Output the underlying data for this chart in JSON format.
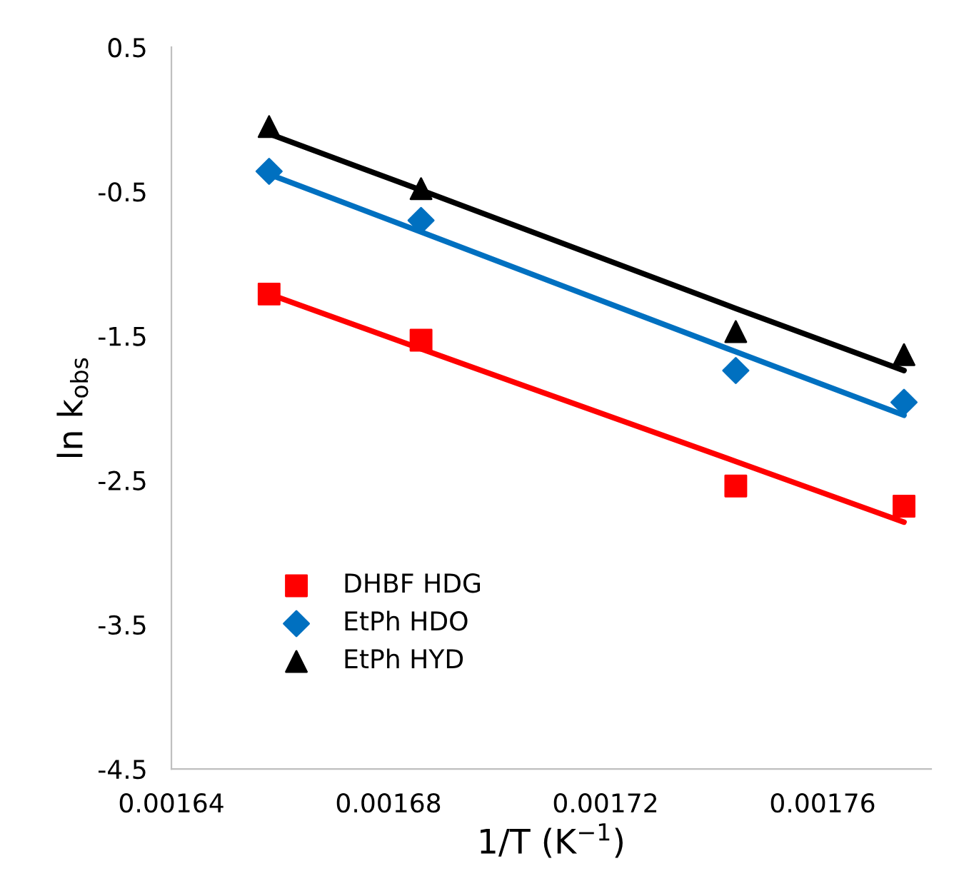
{
  "chart_data": {
    "type": "scatter",
    "xlabel": "1/T (K$^{−1}$)",
    "ylabel": "ln k$_{obs}$",
    "xlim": [
      0.00164,
      0.00178
    ],
    "xticks": [
      0.00164,
      0.00168,
      0.00172,
      0.00176
    ],
    "ylim": [
      -4.5,
      0.5
    ],
    "yticks": [
      -4.5,
      -3.5,
      -2.5,
      -1.5,
      -0.5,
      0.5
    ],
    "x": [
      0.001658,
      0.001686,
      0.001744,
      0.001775
    ],
    "grid": false,
    "legend": "bottom left",
    "series": [
      {
        "name": "DHBF HDG",
        "color": "#ff0000",
        "marker": "square",
        "values": [
          -1.21,
          -1.53,
          -2.54,
          -2.68
        ]
      },
      {
        "name": "EtPh HDO",
        "color": "#0070c0",
        "marker": "diamond",
        "values": [
          -0.36,
          -0.7,
          -1.74,
          -1.96
        ]
      },
      {
        "name": "EtPh HYD",
        "color": "#000000",
        "marker": "triangle",
        "values": [
          -0.05,
          -0.48,
          -1.47,
          -1.63
        ]
      },
      {
        "type": "line",
        "color": "#ff0000",
        "values": [
          -1.21,
          -1.59,
          -2.37,
          -2.79
        ]
      },
      {
        "type": "line",
        "color": "#0070c0",
        "values": [
          -0.38,
          -0.78,
          -1.61,
          -2.05
        ]
      },
      {
        "type": "line",
        "color": "#000000",
        "values": [
          -0.1,
          -0.49,
          -1.31,
          -1.74
        ]
      }
    ]
  }
}
